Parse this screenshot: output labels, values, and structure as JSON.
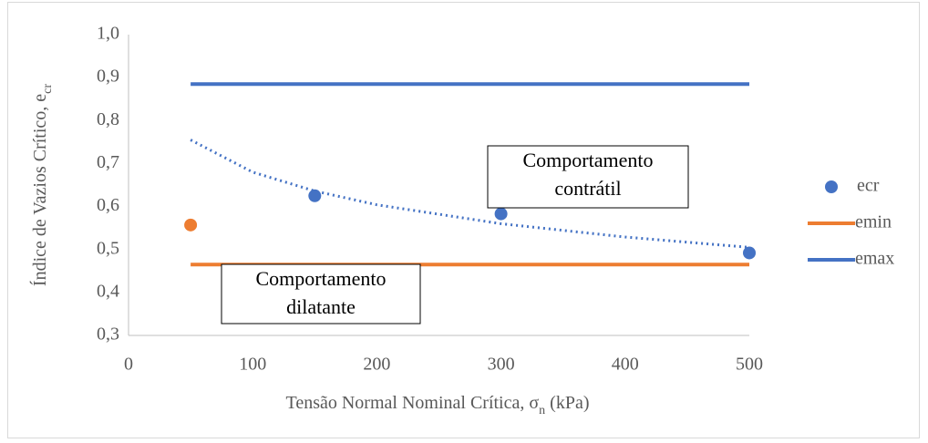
{
  "chart_data": {
    "type": "scatter",
    "y_label": [
      "Índice de Vazios Crítico, e",
      "cr"
    ],
    "x_label": [
      "Tensão Normal Nominal Crítica, σ",
      "n",
      " (kPa)"
    ],
    "xlim": [
      0,
      500
    ],
    "xticks": [
      0,
      100,
      200,
      300,
      400,
      500
    ],
    "ylim": [
      0.3,
      1.0
    ],
    "yticks": [
      {
        "value": 0.3,
        "label": "0,3"
      },
      {
        "value": 0.4,
        "label": "0,4"
      },
      {
        "value": 0.5,
        "label": "0,5"
      },
      {
        "value": 0.6,
        "label": "0,6"
      },
      {
        "value": 0.7,
        "label": "0,7"
      },
      {
        "value": 0.8,
        "label": "0,8"
      },
      {
        "value": 0.9,
        "label": "0,9"
      },
      {
        "value": 1.0,
        "label": "1,0"
      }
    ],
    "series": [
      {
        "name": "ecr",
        "mode": "markers",
        "color": "#4472c4",
        "colors": [
          "#ed7d31",
          "#4472c4",
          "#4472c4",
          "#4472c4"
        ],
        "x": [
          50,
          150,
          300,
          500
        ],
        "values": [
          0.557,
          0.625,
          0.583,
          0.492
        ]
      },
      {
        "name": "emin",
        "mode": "line",
        "color": "#ed7d31",
        "x": [
          50,
          500
        ],
        "values": [
          0.465,
          0.465
        ]
      },
      {
        "name": "emax",
        "mode": "line",
        "color": "#4472c4",
        "x": [
          50,
          500
        ],
        "values": [
          0.885,
          0.885
        ]
      }
    ],
    "trendline": {
      "color": "#4472c4",
      "x": [
        50,
        100,
        150,
        200,
        300,
        400,
        500
      ],
      "values": [
        0.755,
        0.68,
        0.636,
        0.604,
        0.56,
        0.529,
        0.505
      ]
    },
    "annotations": [
      {
        "lines": [
          "Comportamento",
          "contrátil"
        ]
      },
      {
        "lines": [
          "Comportamento",
          "dilatante"
        ]
      }
    ]
  }
}
